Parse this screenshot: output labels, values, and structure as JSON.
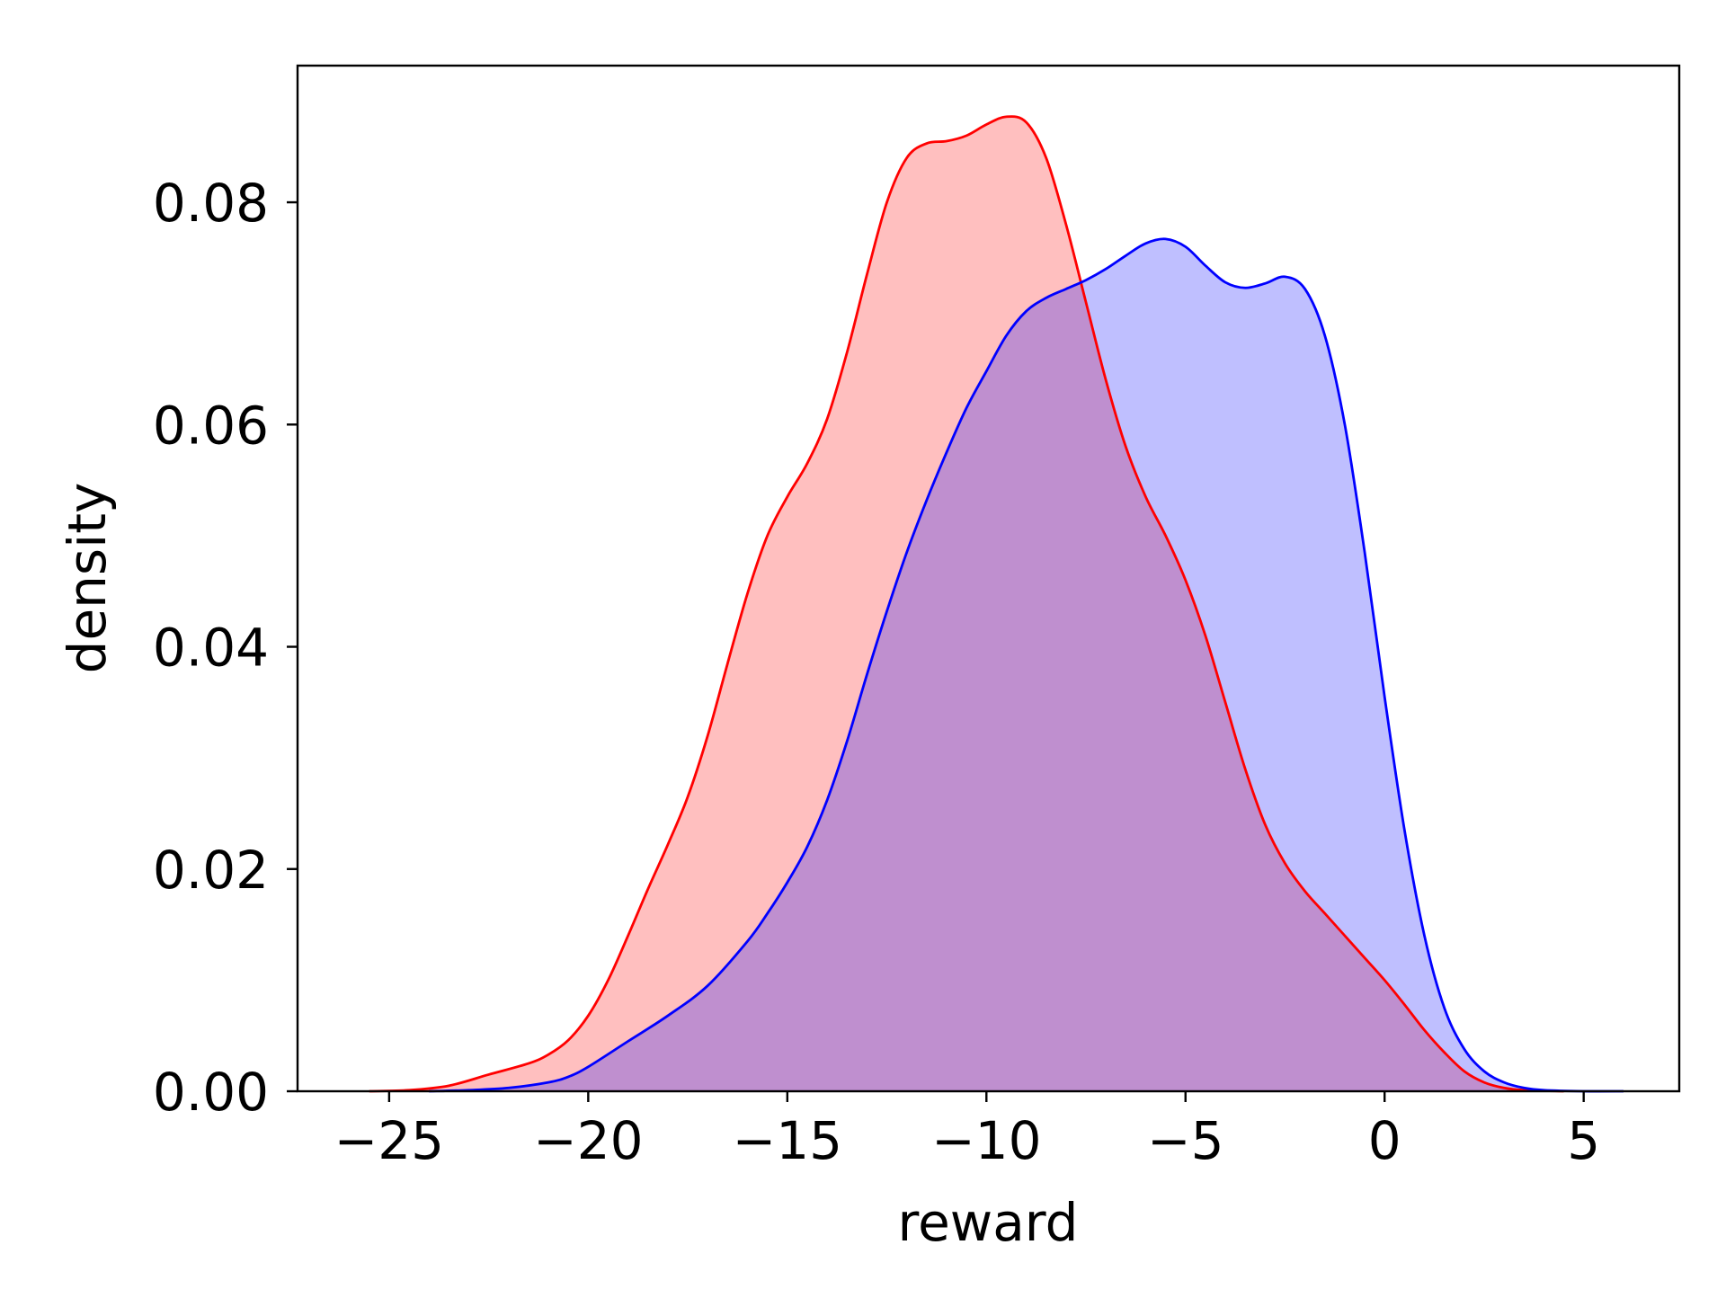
{
  "chart_data": {
    "type": "area",
    "title": "",
    "xlabel": "reward",
    "ylabel": "density",
    "xlim": [
      -27.3,
      7.4
    ],
    "ylim": [
      0,
      0.0923
    ],
    "x_ticks": [
      -25,
      -20,
      -15,
      -10,
      -5,
      0,
      5
    ],
    "x_tick_labels": [
      "−25",
      "−20",
      "−15",
      "−10",
      "−5",
      "0",
      "5"
    ],
    "y_ticks": [
      0,
      0.02,
      0.04,
      0.06,
      0.08
    ],
    "y_tick_labels": [
      "0.00",
      "0.02",
      "0.04",
      "0.06",
      "0.08"
    ],
    "grid": false,
    "legend": "none",
    "series": [
      {
        "color": "#ff0000",
        "fill_color": "#ff0000",
        "fill_opacity": 0.25,
        "points": [
          [
            -25.5,
            0.0
          ],
          [
            -24.5,
            0.0001
          ],
          [
            -23.5,
            0.0005
          ],
          [
            -22.5,
            0.0015
          ],
          [
            -21.5,
            0.0025
          ],
          [
            -21.0,
            0.0033
          ],
          [
            -20.5,
            0.0046
          ],
          [
            -20.0,
            0.0068
          ],
          [
            -19.5,
            0.01
          ],
          [
            -19.0,
            0.014
          ],
          [
            -18.5,
            0.0182
          ],
          [
            -18.0,
            0.0222
          ],
          [
            -17.5,
            0.0265
          ],
          [
            -17.0,
            0.032
          ],
          [
            -16.5,
            0.0385
          ],
          [
            -16.0,
            0.0448
          ],
          [
            -15.5,
            0.05
          ],
          [
            -15.0,
            0.0535
          ],
          [
            -14.5,
            0.0565
          ],
          [
            -14.0,
            0.0605
          ],
          [
            -13.5,
            0.0665
          ],
          [
            -13.0,
            0.0735
          ],
          [
            -12.5,
            0.08
          ],
          [
            -12.0,
            0.084
          ],
          [
            -11.5,
            0.0853
          ],
          [
            -11.0,
            0.0855
          ],
          [
            -10.5,
            0.086
          ],
          [
            -10.0,
            0.087
          ],
          [
            -9.5,
            0.0877
          ],
          [
            -9.0,
            0.0872
          ],
          [
            -8.5,
            0.084
          ],
          [
            -8.0,
            0.078
          ],
          [
            -7.5,
            0.071
          ],
          [
            -7.0,
            0.064
          ],
          [
            -6.5,
            0.058
          ],
          [
            -6.0,
            0.0535
          ],
          [
            -5.5,
            0.05
          ],
          [
            -5.0,
            0.046
          ],
          [
            -4.5,
            0.041
          ],
          [
            -4.0,
            0.035
          ],
          [
            -3.5,
            0.029
          ],
          [
            -3.0,
            0.024
          ],
          [
            -2.5,
            0.0205
          ],
          [
            -2.0,
            0.018
          ],
          [
            -1.5,
            0.016
          ],
          [
            -1.0,
            0.014
          ],
          [
            -0.5,
            0.012
          ],
          [
            0.0,
            0.01
          ],
          [
            0.5,
            0.0078
          ],
          [
            1.0,
            0.0055
          ],
          [
            1.5,
            0.0035
          ],
          [
            2.0,
            0.0018
          ],
          [
            2.5,
            0.0008
          ],
          [
            3.0,
            0.0003
          ],
          [
            3.5,
            0.0001
          ],
          [
            4.5,
            0.0
          ]
        ]
      },
      {
        "color": "#0000ff",
        "fill_color": "#0000ff",
        "fill_opacity": 0.25,
        "points": [
          [
            -24.0,
            0.0
          ],
          [
            -23.0,
            0.0001
          ],
          [
            -22.0,
            0.0003
          ],
          [
            -21.0,
            0.0008
          ],
          [
            -20.5,
            0.0013
          ],
          [
            -20.0,
            0.0022
          ],
          [
            -19.0,
            0.0045
          ],
          [
            -18.0,
            0.0068
          ],
          [
            -17.0,
            0.0095
          ],
          [
            -16.0,
            0.0135
          ],
          [
            -15.5,
            0.016
          ],
          [
            -15.0,
            0.0188
          ],
          [
            -14.5,
            0.022
          ],
          [
            -14.0,
            0.0262
          ],
          [
            -13.5,
            0.0315
          ],
          [
            -13.0,
            0.0375
          ],
          [
            -12.5,
            0.0432
          ],
          [
            -12.0,
            0.0485
          ],
          [
            -11.5,
            0.0532
          ],
          [
            -11.0,
            0.0575
          ],
          [
            -10.5,
            0.0615
          ],
          [
            -10.0,
            0.0648
          ],
          [
            -9.5,
            0.068
          ],
          [
            -9.0,
            0.0702
          ],
          [
            -8.5,
            0.0714
          ],
          [
            -8.0,
            0.0722
          ],
          [
            -7.5,
            0.073
          ],
          [
            -7.0,
            0.074
          ],
          [
            -6.5,
            0.0752
          ],
          [
            -6.0,
            0.0763
          ],
          [
            -5.5,
            0.0767
          ],
          [
            -5.0,
            0.076
          ],
          [
            -4.5,
            0.0743
          ],
          [
            -4.0,
            0.0728
          ],
          [
            -3.5,
            0.0723
          ],
          [
            -3.0,
            0.0727
          ],
          [
            -2.5,
            0.0733
          ],
          [
            -2.0,
            0.0722
          ],
          [
            -1.5,
            0.068
          ],
          [
            -1.0,
            0.06
          ],
          [
            -0.5,
            0.0485
          ],
          [
            0.0,
            0.0355
          ],
          [
            0.5,
            0.0235
          ],
          [
            1.0,
            0.014
          ],
          [
            1.5,
            0.0075
          ],
          [
            2.0,
            0.0038
          ],
          [
            2.5,
            0.0018
          ],
          [
            3.0,
            0.0008
          ],
          [
            3.5,
            0.0003
          ],
          [
            4.0,
            0.0001
          ],
          [
            5.0,
            0.0
          ],
          [
            6.0,
            0.0
          ]
        ]
      }
    ]
  }
}
